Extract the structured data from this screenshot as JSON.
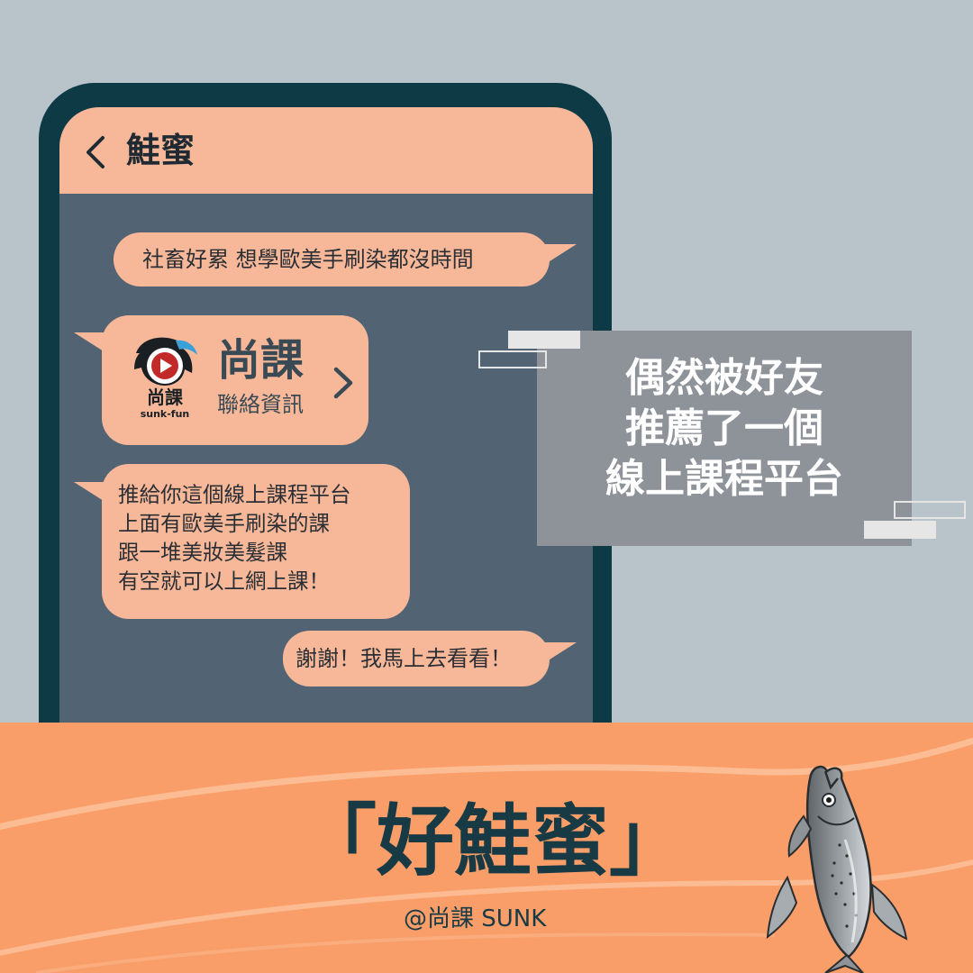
{
  "chat": {
    "contact_name": "鮭蜜",
    "messages": [
      {
        "from": "me",
        "text": "社畜好累 想學歐美手刷染都沒時間"
      },
      {
        "from": "friend",
        "type": "contact_card",
        "title": "尚課",
        "subtitle": "聯絡資訊",
        "logo_text": "尚課",
        "logo_sub": "sunk-fun"
      },
      {
        "from": "friend",
        "text": "推給你這個線上課程平台\n上面有歐美手刷染的課\n跟一堆美妝美髮課\n有空就可以上網上課！"
      },
      {
        "from": "me",
        "text": "謝謝！我馬上去看看！"
      }
    ]
  },
  "caption": {
    "text": "偶然被好友\n推薦了一個\n線上課程平台"
  },
  "footer": {
    "title": "「好鮭蜜」",
    "handle": "@尚課 SUNK"
  },
  "colors": {
    "background": "#b9c4ca",
    "phone_frame": "#0e3a45",
    "chat_bg": "#526374",
    "bubble": "#f6b898",
    "band": "#f99e68",
    "caption_box": "#8e9399"
  },
  "icons": {
    "back": "chevron-left-icon",
    "card_arrow": "chevron-right-icon",
    "logo": "sunk-fun-logo",
    "mascot": "salmon-illustration"
  }
}
